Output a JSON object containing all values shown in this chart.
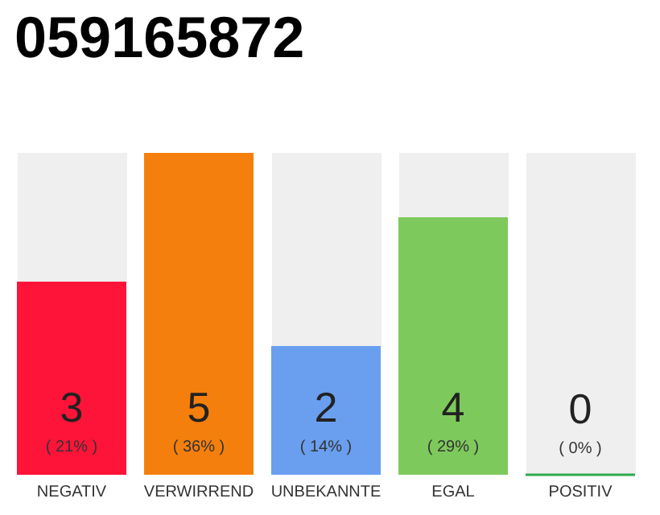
{
  "chart_data": {
    "type": "bar",
    "title": "059165872",
    "categories": [
      "NEGATIV",
      "VERWIRREND",
      "UNBEKANNTE",
      "EGAL",
      "POSITIV"
    ],
    "values": [
      3,
      5,
      2,
      4,
      0
    ],
    "colors": [
      "#ff1439",
      "#f47f0c",
      "#6a9ff0",
      "#7ec95c",
      "#2eaa4a"
    ],
    "value_labels": [
      "3\n( 21% )",
      "5\n( 36% )",
      "2\n( 14% )",
      "4\n( 29% )",
      "0\n( 0% )"
    ],
    "grid": false
  }
}
